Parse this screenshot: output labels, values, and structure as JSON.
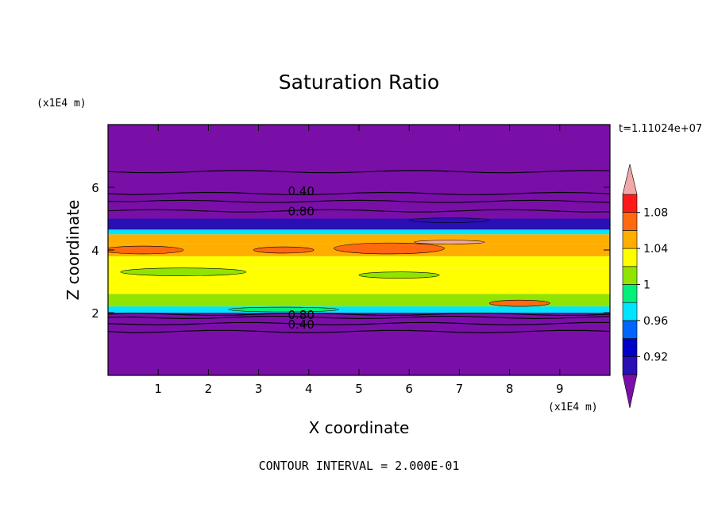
{
  "chart_data": {
    "type": "heatmap",
    "title": "Saturation Ratio",
    "xlabel": "X coordinate",
    "ylabel": "Z coordinate",
    "x_unit_label": "(x1E4 m)",
    "y_unit_label": "(x1E4 m)",
    "time_label": "t=1.11024e+07",
    "footer": "CONTOUR INTERVAL = 2.000E-01",
    "xlim": [
      0,
      10
    ],
    "ylim": [
      0,
      8
    ],
    "x_ticks": [
      1,
      2,
      3,
      4,
      5,
      6,
      7,
      8,
      9
    ],
    "y_ticks": [
      2,
      4,
      6
    ],
    "grid": false,
    "colorbar": {
      "levels": [
        0.9,
        0.92,
        0.94,
        0.96,
        0.98,
        1.0,
        1.02,
        1.04,
        1.06,
        1.08,
        1.1
      ],
      "tick_labels": [
        "0.92",
        "0.96",
        "1",
        "1.04",
        "1.08"
      ],
      "tick_values": [
        0.92,
        0.96,
        1.0,
        1.04,
        1.08
      ],
      "colors": [
        "#7a0fa8",
        "#2a10b4",
        "#0000c8",
        "#0066ff",
        "#00e4ff",
        "#00f07a",
        "#90e400",
        "#ffff00",
        "#ffae00",
        "#ff6a10",
        "#ff1a1a"
      ],
      "under_color": "#7a0fa8",
      "over_color": "#f2a8a8"
    },
    "bands": [
      {
        "z0": 0.0,
        "z1": 2.0,
        "value": 0.2
      },
      {
        "z0": 2.0,
        "z1": 2.2,
        "value": 0.97
      },
      {
        "z0": 2.2,
        "z1": 2.6,
        "value": 1.01
      },
      {
        "z0": 2.6,
        "z1": 3.0,
        "value": 1.03
      },
      {
        "z0": 3.0,
        "z1": 3.4,
        "value": 1.02
      },
      {
        "z0": 3.4,
        "z1": 3.8,
        "value": 1.03
      },
      {
        "z0": 3.8,
        "z1": 4.2,
        "value": 1.05
      },
      {
        "z0": 4.2,
        "z1": 4.5,
        "value": 1.04
      },
      {
        "z0": 4.5,
        "z1": 4.65,
        "value": 0.97
      },
      {
        "z0": 4.65,
        "z1": 5.0,
        "value": 0.9
      },
      {
        "z0": 5.0,
        "z1": 8.0,
        "value": 0.3
      }
    ],
    "patches": [
      {
        "x": 6.8,
        "z": 4.25,
        "dx": 1.4,
        "dz": 0.12,
        "value": 1.1
      },
      {
        "x": 5.6,
        "z": 4.05,
        "dx": 2.2,
        "dz": 0.35,
        "value": 1.07
      },
      {
        "x": 0.7,
        "z": 4.0,
        "dx": 1.6,
        "dz": 0.25,
        "value": 1.06
      },
      {
        "x": 3.5,
        "z": 4.0,
        "dx": 1.2,
        "dz": 0.2,
        "value": 1.06
      },
      {
        "x": 1.5,
        "z": 3.3,
        "dx": 2.5,
        "dz": 0.25,
        "value": 1.01
      },
      {
        "x": 5.8,
        "z": 3.2,
        "dx": 1.6,
        "dz": 0.2,
        "value": 1.01
      },
      {
        "x": 8.2,
        "z": 2.3,
        "dx": 1.2,
        "dz": 0.2,
        "value": 1.06
      },
      {
        "x": 6.8,
        "z": 4.95,
        "dx": 1.6,
        "dz": 0.15,
        "value": 0.91
      },
      {
        "x": 3.5,
        "z": 2.1,
        "dx": 2.2,
        "dz": 0.15,
        "value": 0.99
      }
    ],
    "contour_labels": [
      {
        "text": "0.40",
        "x": 3.5,
        "z": 5.9
      },
      {
        "text": "0.80",
        "x": 3.5,
        "z": 5.25
      },
      {
        "text": "0.80",
        "x": 3.5,
        "z": 1.95
      },
      {
        "text": "0.40",
        "x": 3.5,
        "z": 1.65
      }
    ],
    "contour_lines": [
      {
        "z": 6.5
      },
      {
        "z": 5.8
      },
      {
        "z": 5.55
      },
      {
        "z": 5.25
      },
      {
        "z": 1.95
      },
      {
        "z": 1.85
      },
      {
        "z": 1.65
      },
      {
        "z": 1.4
      }
    ]
  }
}
